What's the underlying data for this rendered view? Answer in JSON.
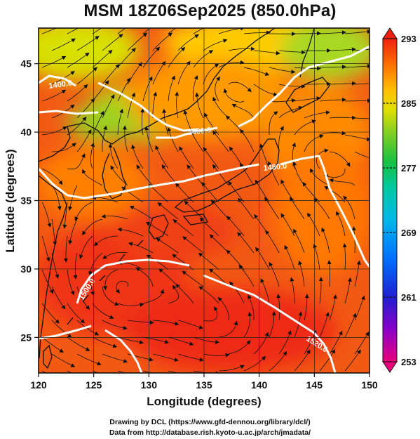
{
  "title": "MSM 18Z06Sep2025 (850.0hPa)",
  "xaxis": {
    "label": "Longitude (degrees)",
    "ticks": [
      "120",
      "125",
      "130",
      "135",
      "140",
      "145",
      "150"
    ],
    "range": [
      120,
      150
    ]
  },
  "yaxis": {
    "label": "Latitude  (degrees)",
    "ticks": [
      "25",
      "30",
      "35",
      "40",
      "45"
    ],
    "range": [
      22.4,
      47.6
    ]
  },
  "colorbar": {
    "ticks": [
      "293",
      "285",
      "277",
      "269",
      "261",
      "253"
    ],
    "range": [
      253,
      293
    ],
    "colors": [
      "#e9007a",
      "#a000c8",
      "#5a00c8",
      "#1a2ad2",
      "#0060ff",
      "#00a8f0",
      "#00c8c8",
      "#00c878",
      "#30c030",
      "#8ad020",
      "#d0e000",
      "#ffd400",
      "#ffa000",
      "#ff6a00",
      "#f02010"
    ]
  },
  "contour_labels": [
    "1400.0",
    "1440.0",
    "1480.0",
    "1500.0",
    "1520.0"
  ],
  "credits": {
    "line1": "Drawing by DCL (https://www.gfd-dennou.org/library/dcl/)",
    "line2": "Data from http://database.rish.kyoto-u.ac.jp/arch/jmadata/"
  }
}
